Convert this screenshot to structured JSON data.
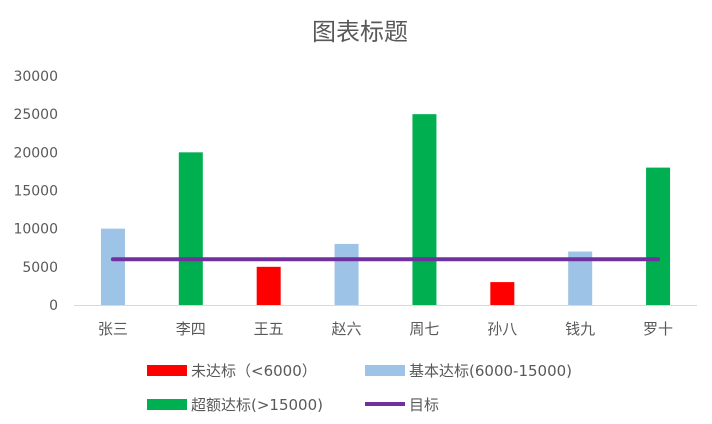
{
  "chart_data": {
    "type": "bar",
    "title": "图表标题",
    "categories": [
      "张三",
      "李四",
      "王五",
      "赵六",
      "周七",
      "孙八",
      "钱九",
      "罗十"
    ],
    "values": [
      10000,
      20000,
      5000,
      8000,
      25000,
      3000,
      7000,
      18000
    ],
    "point_series": [
      1,
      2,
      0,
      1,
      2,
      0,
      1,
      2
    ],
    "series": [
      {
        "name": "未达标（<6000）",
        "color": "#ff0000"
      },
      {
        "name": "基本达标(6000-15000)",
        "color": "#9dc3e6"
      },
      {
        "name": "超额达标(>15000)",
        "color": "#00b050"
      }
    ],
    "target": {
      "name": "目标",
      "value": 6000,
      "color": "#7030a0"
    },
    "ylim": [
      0,
      30000
    ],
    "yticks": [
      0,
      5000,
      10000,
      15000,
      20000,
      25000,
      30000
    ],
    "grid": false,
    "legend_position": "bottom"
  }
}
